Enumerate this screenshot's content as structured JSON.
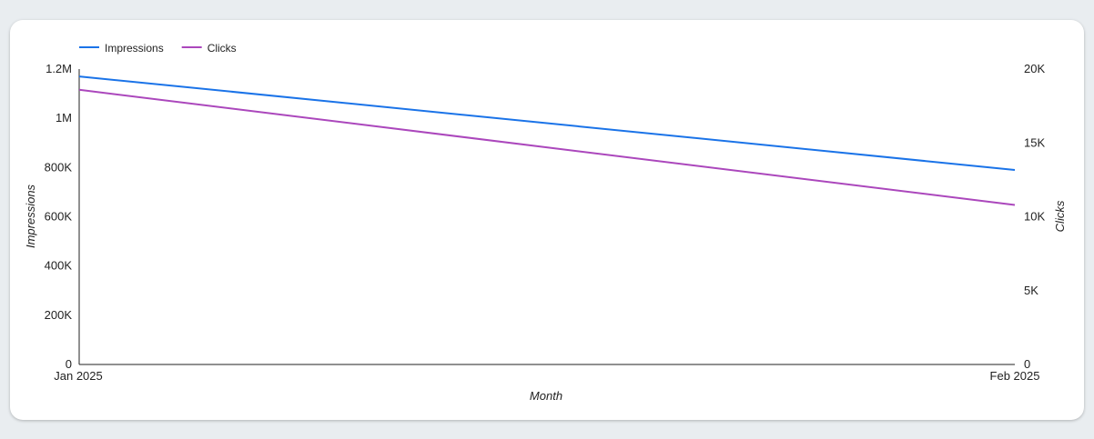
{
  "chart_data": {
    "type": "line",
    "categories": [
      "Jan 2025",
      "Feb 2025"
    ],
    "series": [
      {
        "name": "Impressions",
        "values": [
          1170000,
          790000
        ],
        "axis": "left",
        "color": "#1a73e8"
      },
      {
        "name": "Clicks",
        "values": [
          18600,
          10800
        ],
        "axis": "right",
        "color": "#ab47bc"
      }
    ],
    "xlabel": "Month",
    "ylabel_left": "Impressions",
    "ylabel_right": "Clicks",
    "ylim_left": [
      0,
      1200000
    ],
    "ylim_right": [
      0,
      20000
    ],
    "left_ticks": [
      {
        "value": 0,
        "label": "0"
      },
      {
        "value": 200000,
        "label": "200K"
      },
      {
        "value": 400000,
        "label": "400K"
      },
      {
        "value": 600000,
        "label": "600K"
      },
      {
        "value": 800000,
        "label": "800K"
      },
      {
        "value": 1000000,
        "label": "1M"
      },
      {
        "value": 1200000,
        "label": "1.2M"
      }
    ],
    "right_ticks": [
      {
        "value": 0,
        "label": "0"
      },
      {
        "value": 5000,
        "label": "5K"
      },
      {
        "value": 10000,
        "label": "10K"
      },
      {
        "value": 15000,
        "label": "15K"
      },
      {
        "value": 20000,
        "label": "20K"
      }
    ],
    "legend_position": "top-left",
    "grid": false
  }
}
